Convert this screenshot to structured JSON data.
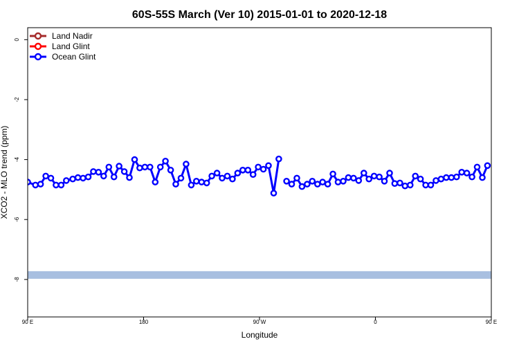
{
  "chart_data": {
    "type": "line",
    "title": "60S-55S March (Ver 10)   2015-01-01 to 2020-12-18",
    "xlabel": "Longitude",
    "ylabel": "XCO2 - MLO trend (ppm)",
    "xlim": [
      90,
      450
    ],
    "ylim": [
      -9.25,
      0.4
    ],
    "xticks": [
      {
        "value": 90,
        "label": "90 E"
      },
      {
        "value": 180,
        "label": "180"
      },
      {
        "value": 270,
        "label": "90 W"
      },
      {
        "value": 360,
        "label": "0"
      },
      {
        "value": 450,
        "label": "90 E"
      },
      {
        "value": 540,
        "label": "180"
      }
    ],
    "yticks": [
      {
        "value": 0,
        "label": "0"
      },
      {
        "value": -2,
        "label": "-2"
      },
      {
        "value": -4,
        "label": "-4"
      },
      {
        "value": -6,
        "label": "-6"
      },
      {
        "value": -8,
        "label": "-8"
      }
    ],
    "legend": {
      "position": "top-left",
      "entries": [
        {
          "name": "Land Nadir",
          "color": "#a52a2a"
        },
        {
          "name": "Land Glint",
          "color": "#ff0000"
        },
        {
          "name": "Ocean Glint",
          "color": "#0000ff"
        }
      ]
    },
    "band": {
      "y": -7.85,
      "color": "#a8bfe0"
    },
    "series": [
      {
        "name": "Ocean Glint",
        "color": "#0000ff",
        "segments": [
          [
            [
              90,
              -4.75
            ],
            [
              96,
              -4.85
            ],
            [
              100,
              -4.82
            ],
            [
              104,
              -4.55
            ],
            [
              108,
              -4.62
            ],
            [
              112,
              -4.85
            ],
            [
              116,
              -4.85
            ],
            [
              120,
              -4.7
            ],
            [
              125,
              -4.65
            ],
            [
              129,
              -4.6
            ],
            [
              133,
              -4.62
            ],
            [
              137,
              -4.58
            ],
            [
              141,
              -4.4
            ],
            [
              145,
              -4.42
            ],
            [
              149,
              -4.55
            ],
            [
              153,
              -4.25
            ],
            [
              157,
              -4.58
            ],
            [
              161,
              -4.22
            ],
            [
              165,
              -4.4
            ],
            [
              169,
              -4.6
            ],
            [
              173,
              -4.0
            ],
            [
              177,
              -4.28
            ],
            [
              181,
              -4.25
            ],
            [
              185,
              -4.25
            ],
            [
              189,
              -4.75
            ],
            [
              193,
              -4.25
            ],
            [
              197,
              -4.05
            ],
            [
              201,
              -4.35
            ],
            [
              205,
              -4.82
            ],
            [
              209,
              -4.62
            ],
            [
              213,
              -4.15
            ],
            [
              217,
              -4.85
            ],
            [
              221,
              -4.72
            ],
            [
              225,
              -4.75
            ],
            [
              229,
              -4.78
            ],
            [
              233,
              -4.55
            ],
            [
              237,
              -4.45
            ],
            [
              241,
              -4.62
            ],
            [
              245,
              -4.55
            ],
            [
              249,
              -4.65
            ],
            [
              253,
              -4.45
            ],
            [
              257,
              -4.35
            ],
            [
              261,
              -4.35
            ],
            [
              265,
              -4.5
            ],
            [
              269,
              -4.25
            ],
            [
              273,
              -4.32
            ],
            [
              277,
              -4.2
            ],
            [
              281,
              -5.12
            ],
            [
              285,
              -3.98
            ]
          ],
          [
            [
              291,
              -4.72
            ],
            [
              295,
              -4.82
            ],
            [
              299,
              -4.62
            ],
            [
              303,
              -4.9
            ],
            [
              307,
              -4.82
            ],
            [
              311,
              -4.72
            ],
            [
              315,
              -4.82
            ],
            [
              319,
              -4.75
            ],
            [
              323,
              -4.82
            ],
            [
              327,
              -4.48
            ],
            [
              331,
              -4.75
            ],
            [
              335,
              -4.72
            ],
            [
              339,
              -4.6
            ],
            [
              343,
              -4.62
            ],
            [
              347,
              -4.7
            ],
            [
              351,
              -4.45
            ],
            [
              355,
              -4.65
            ],
            [
              359,
              -4.55
            ],
            [
              363,
              -4.58
            ],
            [
              367,
              -4.72
            ],
            [
              371,
              -4.45
            ],
            [
              375,
              -4.8
            ],
            [
              379,
              -4.78
            ],
            [
              383,
              -4.88
            ],
            [
              387,
              -4.85
            ],
            [
              391,
              -4.55
            ],
            [
              395,
              -4.65
            ],
            [
              399,
              -4.85
            ],
            [
              403,
              -4.85
            ],
            [
              407,
              -4.7
            ],
            [
              411,
              -4.65
            ],
            [
              415,
              -4.6
            ],
            [
              419,
              -4.6
            ],
            [
              423,
              -4.58
            ],
            [
              427,
              -4.42
            ],
            [
              431,
              -4.45
            ],
            [
              435,
              -4.58
            ],
            [
              439,
              -4.25
            ],
            [
              443,
              -4.6
            ],
            [
              447,
              -4.2
            ]
          ]
        ]
      }
    ]
  }
}
